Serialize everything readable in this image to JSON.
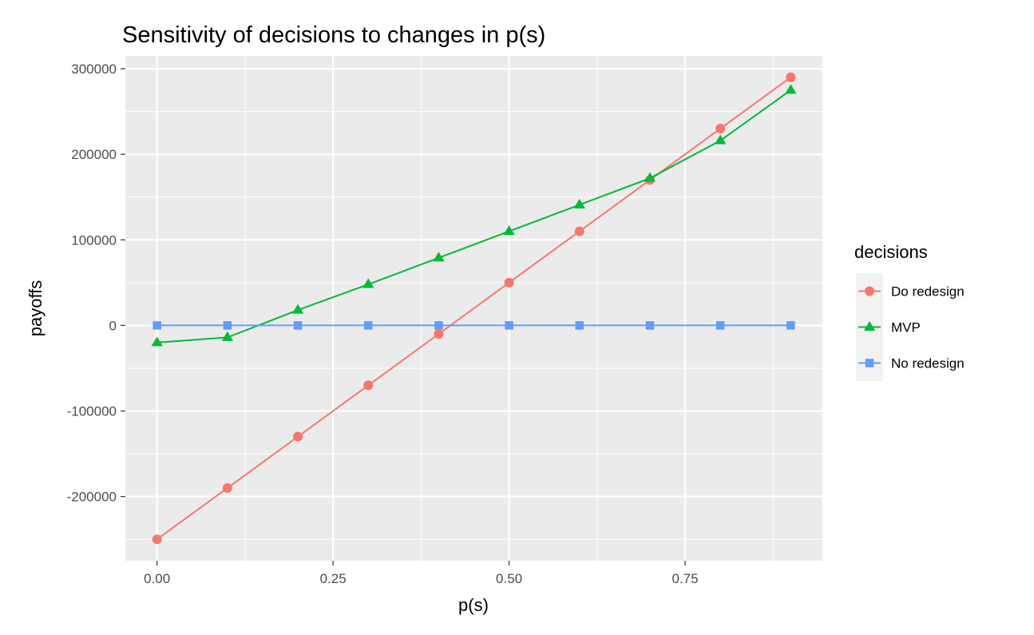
{
  "chart_data": {
    "type": "line",
    "title": "Sensitivity of decisions to changes in p(s)",
    "xlabel": "p(s)",
    "ylabel": "payoffs",
    "x": [
      0.0,
      0.1,
      0.2,
      0.3,
      0.4,
      0.5,
      0.6,
      0.7,
      0.8,
      0.9
    ],
    "xlim": [
      -0.045,
      0.945
    ],
    "ylim": [
      -275000,
      315000
    ],
    "x_ticks": [
      0.0,
      0.25,
      0.5,
      0.75
    ],
    "x_tick_labels": [
      "0.00",
      "0.25",
      "0.50",
      "0.75"
    ],
    "y_ticks": [
      -200000,
      -100000,
      0,
      100000,
      200000,
      300000
    ],
    "y_tick_labels": [
      "-200000",
      "-100000",
      "0",
      "100000",
      "200000",
      "300000"
    ],
    "grid": true,
    "legend": {
      "title": "decisions",
      "position": "right"
    },
    "series": [
      {
        "name": "Do redesign",
        "color": "#F8766D",
        "marker": "circle",
        "values": [
          -250000,
          -190000,
          -130000,
          -70000,
          -10000,
          50000,
          110000,
          170000,
          230000,
          290000
        ]
      },
      {
        "name": "MVP",
        "color": "#00BA38",
        "marker": "triangle",
        "values": [
          -20000,
          -14000,
          18000,
          48000,
          79000,
          110000,
          141000,
          172000,
          216000,
          275000
        ]
      },
      {
        "name": "No redesign",
        "color": "#619CFF",
        "marker": "square",
        "values": [
          0,
          0,
          0,
          0,
          0,
          0,
          0,
          0,
          0,
          0
        ]
      }
    ]
  }
}
